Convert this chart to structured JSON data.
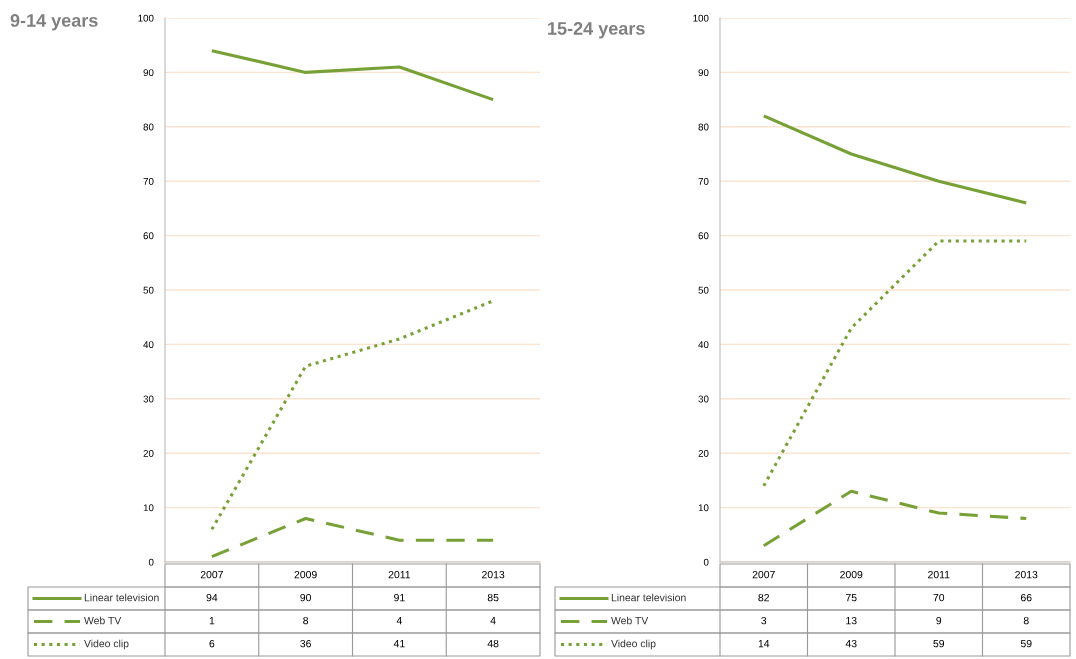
{
  "chart_data": [
    {
      "type": "line",
      "title": "9-14 years",
      "categories": [
        "2007",
        "2009",
        "2011",
        "2013"
      ],
      "ylim": [
        0,
        100
      ],
      "yticks": [
        0,
        10,
        20,
        30,
        40,
        50,
        60,
        70,
        80,
        90,
        100
      ],
      "grid": "y",
      "data_labels": true,
      "legend": "bottom",
      "series": [
        {
          "name": "Linear television",
          "color": "#77a136",
          "line_style": "solid",
          "values": [
            94,
            90,
            91,
            85
          ]
        },
        {
          "name": "Web TV",
          "color": "#77a136",
          "line_style": "dashed",
          "values": [
            1,
            8,
            4,
            4
          ]
        },
        {
          "name": "Video clip",
          "color": "#77a136",
          "line_style": "dotted",
          "values": [
            6,
            36,
            41,
            48
          ]
        }
      ]
    },
    {
      "type": "line",
      "title": "15-24 years",
      "categories": [
        "2007",
        "2009",
        "2011",
        "2013"
      ],
      "ylim": [
        0,
        100
      ],
      "yticks": [
        0,
        10,
        20,
        30,
        40,
        50,
        60,
        70,
        80,
        90,
        100
      ],
      "grid": "y",
      "data_labels": true,
      "legend": "bottom",
      "series": [
        {
          "name": "Linear television",
          "color": "#77a136",
          "line_style": "solid",
          "values": [
            82,
            75,
            70,
            66
          ]
        },
        {
          "name": "Web TV",
          "color": "#77a136",
          "line_style": "dashed",
          "values": [
            3,
            13,
            9,
            8
          ]
        },
        {
          "name": "Video clip",
          "color": "#77a136",
          "line_style": "dotted",
          "values": [
            14,
            43,
            59,
            59
          ]
        }
      ]
    }
  ]
}
